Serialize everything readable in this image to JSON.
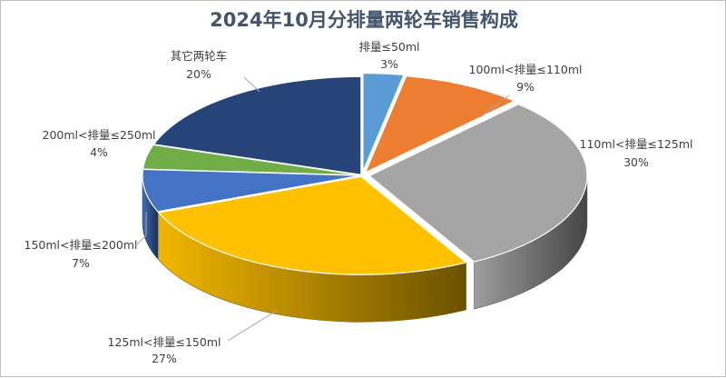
{
  "chart_data": {
    "type": "pie",
    "title": "2024年10月分排量两轮车销售构成",
    "slices": [
      {
        "label": "排量≤50ml",
        "value": 3,
        "value_label": "3%",
        "color": "#5b9bd5"
      },
      {
        "label": "100ml<排量≤110ml",
        "value": 9,
        "value_label": "9%",
        "color": "#ed7d31"
      },
      {
        "label": "110ml<排量≤125ml",
        "value": 30,
        "value_label": "30%",
        "color": "#a5a5a5"
      },
      {
        "label": "125ml<排量≤150ml",
        "value": 27,
        "value_label": "27%",
        "color": "#ffc000"
      },
      {
        "label": "150ml<排量≤200ml",
        "value": 7,
        "value_label": "7%",
        "color": "#4472c4"
      },
      {
        "label": "200ml<排量≤250ml",
        "value": 4,
        "value_label": "4%",
        "color": "#70ad47"
      },
      {
        "label": "其它两轮车",
        "value": 20,
        "value_label": "20%",
        "color": "#264478"
      }
    ],
    "style": "3d-exploded",
    "legend": "none"
  }
}
